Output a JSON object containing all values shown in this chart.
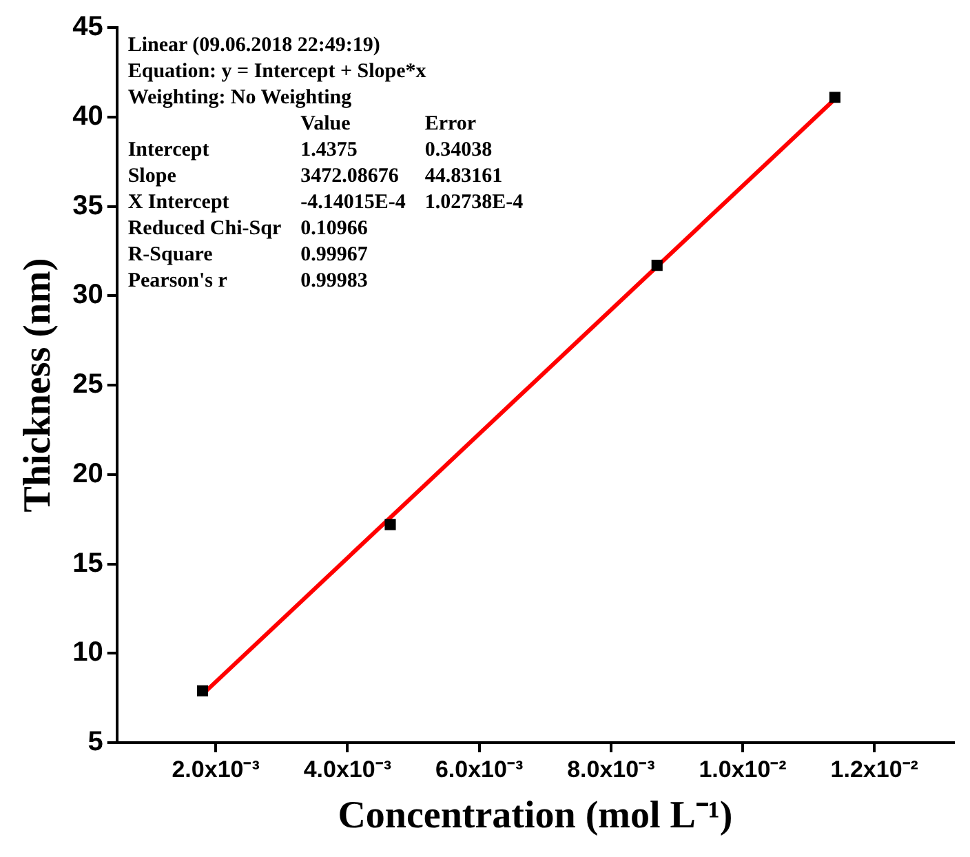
{
  "chart_data": {
    "type": "scatter",
    "xlabel": "Concentration (mol L⁻¹)",
    "ylabel": "Thickness (nm)",
    "xlim": [
      0.0005,
      0.0132
    ],
    "ylim": [
      5,
      45
    ],
    "xticks": [
      {
        "value": 0.002,
        "label": "2.0x10⁻³"
      },
      {
        "value": 0.004,
        "label": "4.0x10⁻³"
      },
      {
        "value": 0.006,
        "label": "6.0x10⁻³"
      },
      {
        "value": 0.008,
        "label": "8.0x10⁻³"
      },
      {
        "value": 0.01,
        "label": "1.0x10⁻²"
      },
      {
        "value": 0.012,
        "label": "1.2x10⁻²"
      }
    ],
    "yticks": [
      5,
      10,
      15,
      20,
      25,
      30,
      35,
      40,
      45
    ],
    "grid": false,
    "legend": false,
    "series": [
      {
        "marker": "square",
        "color": "#000000",
        "x": [
          0.0018,
          0.00465,
          0.0087,
          0.0114
        ],
        "values": [
          7.9,
          17.2,
          31.7,
          41.1
        ]
      },
      {
        "type": "line",
        "marker": "none",
        "color": "#ff0000",
        "line_style": "solid",
        "x": [
          0.0018,
          0.0114
        ],
        "values": [
          7.7,
          41.0
        ]
      }
    ],
    "annotations": [
      "Linear (09.06.2018 22:49:19)",
      "Equation: y = Intercept + Slope*x",
      "Weighting: No Weighting",
      "\tValue\tError",
      "Intercept\t1.4375\t0.34038",
      "Slope\t3472.08676\t44.83161",
      "X Intercept\t-4.14015E-4\t1.02738E-4",
      "Reduced Chi-Sqr\t0.10966",
      "R-Square\t0.99967",
      "Pearson's r\t0.99983"
    ]
  }
}
